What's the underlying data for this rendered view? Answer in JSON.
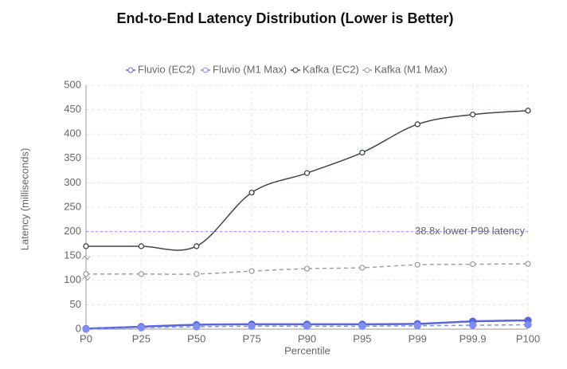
{
  "chart_data": {
    "type": "line",
    "title": "End-to-End Latency Distribution (Lower is Better)",
    "x_label": "Percentile",
    "y_label": "Latency (milliseconds)",
    "categories": [
      "P0",
      "P25",
      "P50",
      "P75",
      "P90",
      "P95",
      "P99",
      "P99.9",
      "P100"
    ],
    "ylim": [
      0,
      500
    ],
    "yticks": [
      0,
      50,
      100,
      150,
      200,
      250,
      300,
      350,
      400,
      450,
      500
    ],
    "grid": true,
    "series": [
      {
        "name": "Fluvio (EC2)",
        "color": "#5a67d8",
        "dashed": false,
        "values": [
          1,
          5,
          9,
          10,
          10,
          10,
          11,
          16,
          18
        ]
      },
      {
        "name": "Fluvio (M1 Max)",
        "color": "#7f8ff0",
        "dashed": true,
        "values": [
          0,
          3,
          5,
          6,
          6,
          6,
          7,
          8,
          9
        ]
      },
      {
        "name": "Kafka (EC2)",
        "color": "#3f4652",
        "dashed": false,
        "values": [
          170,
          170,
          170,
          280,
          320,
          362,
          420,
          440,
          448
        ]
      },
      {
        "name": "Kafka (M1 Max)",
        "color": "#9aa0a8",
        "dashed": true,
        "values": [
          113,
          113,
          113,
          119,
          124,
          126,
          132,
          133,
          134
        ]
      }
    ],
    "annotations": [
      {
        "y": 200,
        "text": "38.8x lower P99 latency"
      }
    ]
  }
}
